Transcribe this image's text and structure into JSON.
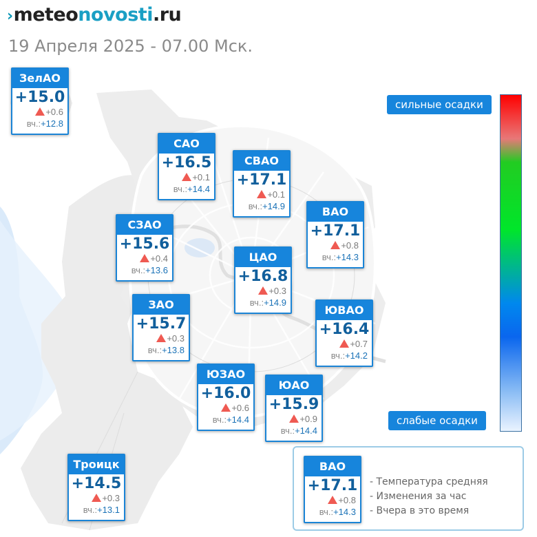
{
  "header": {
    "logo_mark": "›",
    "logo_part1": "meteo",
    "logo_part2": "novosti",
    "logo_part3": ".ru",
    "datetime": "19 Апреля 2025 - 07.00 Мск."
  },
  "yesterday_label": "вч.:",
  "colors": {
    "card_header": "#1785dc",
    "temp_text": "#115f9c",
    "rise_arrow": "#ef5a52",
    "yesterday_value": "#1a72b7"
  },
  "districts": [
    {
      "name": "ЗелАО",
      "temp": "+15.0",
      "change": "+0.6",
      "yesterday": "+12.8"
    },
    {
      "name": "САО",
      "temp": "+16.5",
      "change": "+0.1",
      "yesterday": "+14.4"
    },
    {
      "name": "СВАО",
      "temp": "+17.1",
      "change": "+0.1",
      "yesterday": "+14.9"
    },
    {
      "name": "ВАО",
      "temp": "+17.1",
      "change": "+0.8",
      "yesterday": "+14.3"
    },
    {
      "name": "СЗАО",
      "temp": "+15.6",
      "change": "+0.4",
      "yesterday": "+13.6"
    },
    {
      "name": "ЦАО",
      "temp": "+16.8",
      "change": "+0.3",
      "yesterday": "+14.9"
    },
    {
      "name": "ЗАО",
      "temp": "+15.7",
      "change": "+0.3",
      "yesterday": "+13.8"
    },
    {
      "name": "ЮВАО",
      "temp": "+16.4",
      "change": "+0.7",
      "yesterday": "+14.2"
    },
    {
      "name": "ЮЗАО",
      "temp": "+16.0",
      "change": "+0.6",
      "yesterday": "+14.4"
    },
    {
      "name": "ЮАО",
      "temp": "+15.9",
      "change": "+0.9",
      "yesterday": "+14.4"
    },
    {
      "name": "Троицк",
      "temp": "+14.5",
      "change": "+0.3",
      "yesterday": "+13.1"
    }
  ],
  "precipitation_scale": {
    "top_label": "сильные осадки",
    "bottom_label": "слабые осадки",
    "colors": [
      "#ff0000",
      "#e87878",
      "#22cc22",
      "#00e62a",
      "#0088ee",
      "#0a66ee",
      "#88bbf4",
      "#eaf3ff"
    ]
  },
  "legend": {
    "example": {
      "name": "ВАО",
      "temp": "+17.1",
      "change": "+0.8",
      "yesterday": "+14.3"
    },
    "items": [
      "- Температура средняя",
      "- Изменения за час",
      "- Вчера в это время"
    ]
  }
}
